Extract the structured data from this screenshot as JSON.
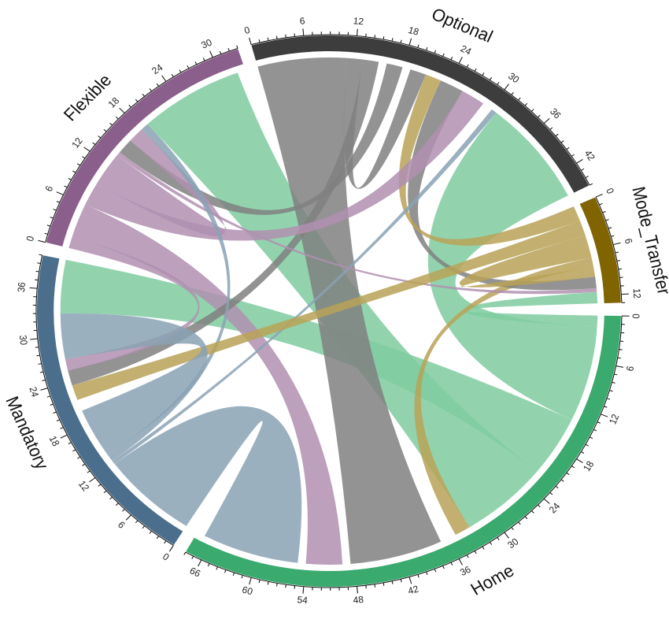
{
  "chart_data": {
    "type": "chord",
    "sectors": [
      {
        "name": "Home",
        "max": 68,
        "color": "#3aaa6e",
        "tick_labels": [
          "0",
          "6",
          "12",
          "18",
          "24",
          "30",
          "36",
          "42",
          "48",
          "54",
          "60",
          "66"
        ]
      },
      {
        "name": "Mandatory",
        "max": 40,
        "color": "#4a6e8c",
        "tick_labels": [
          "0",
          "6",
          "12",
          "18",
          "24",
          "30",
          "36"
        ]
      },
      {
        "name": "Flexible",
        "max": 33,
        "color": "#8b5f8b",
        "tick_labels": [
          "0",
          "6",
          "12",
          "18",
          "24",
          "30"
        ]
      },
      {
        "name": "Optional",
        "max": 45,
        "color": "#3d3d3d",
        "tick_labels": [
          "0",
          "6",
          "12",
          "18",
          "24",
          "30",
          "36",
          "42"
        ]
      },
      {
        "name": "Mode_Transfer",
        "max": 13,
        "color": "#7f6400",
        "tick_labels": [
          "0",
          "6",
          "12"
        ]
      }
    ],
    "link_colors": {
      "Home": "#7fcba0",
      "Mandatory": "#8aa2b4",
      "Flexible": "#b08fb0",
      "Optional": "#808080",
      "Mode_Transfer": "#b8a257"
    },
    "links": [
      {
        "from": "Home",
        "from_range": [
          0,
          1.5
        ],
        "to": "Mode_Transfer",
        "to_range": [
          11.5,
          13
        ]
      },
      {
        "from": "Home",
        "from_range": [
          1.5,
          14
        ],
        "to": "Optional",
        "to_range": [
          31,
          45
        ]
      },
      {
        "from": "Home",
        "from_range": [
          14,
          22
        ],
        "to": "Mandatory",
        "to_range": [
          33,
          40
        ]
      },
      {
        "from": "Home",
        "from_range": [
          22,
          33
        ],
        "to": "Flexible",
        "to_range": [
          19,
          32
        ]
      },
      {
        "from": "Mode_Transfer",
        "from_range": [
          7,
          8.2
        ],
        "to": "Home",
        "to_range": [
          33,
          35
        ]
      },
      {
        "from": "Optional",
        "from_range": [
          0,
          11
        ],
        "to": "Home",
        "to_range": [
          37,
          48.5
        ]
      },
      {
        "from": "Flexible",
        "from_range": [
          1.5,
          6
        ],
        "to": "Home",
        "to_range": [
          49.5,
          54
        ]
      },
      {
        "from": "Mandatory",
        "from_range": [
          0,
          12
        ],
        "to": "Home",
        "to_range": [
          55,
          67
        ]
      },
      {
        "from": "Optional",
        "from_range": [
          11,
          13
        ],
        "to": "Optional",
        "to_range": [
          19,
          21
        ]
      },
      {
        "from": "Optional",
        "from_range": [
          13,
          15
        ],
        "to": "Mandatory",
        "to_range": [
          23.5,
          25.5
        ]
      },
      {
        "from": "Optional",
        "from_range": [
          16,
          18
        ],
        "to": "Flexible",
        "to_range": [
          14,
          16
        ]
      },
      {
        "from": "Optional",
        "from_range": [
          23,
          26
        ],
        "to": "Mode_Transfer",
        "to_range": [
          9.5,
          11
        ]
      },
      {
        "from": "Mode_Transfer",
        "from_range": [
          0,
          2
        ],
        "to": "Optional",
        "to_range": [
          21,
          23
        ]
      },
      {
        "from": "Flexible",
        "from_range": [
          6,
          9
        ],
        "to": "Optional",
        "to_range": [
          26,
          29
        ]
      },
      {
        "from": "Mandatory",
        "from_range": [
          12,
          12.5
        ],
        "to": "Optional",
        "to_range": [
          30.3,
          31
        ]
      },
      {
        "from": "Flexible",
        "from_range": [
          0,
          1.5
        ],
        "to": "Mandatory",
        "to_range": [
          25.5,
          27
        ]
      },
      {
        "from": "Flexible",
        "from_range": [
          9,
          13.5
        ],
        "to": "Flexible",
        "to_range": [
          16,
          18
        ]
      },
      {
        "from": "Flexible",
        "from_range": [
          13.5,
          14
        ],
        "to": "Mode_Transfer",
        "to_range": [
          11,
          11.5
        ]
      },
      {
        "from": "Mandatory",
        "from_range": [
          12.5,
          13.5
        ],
        "to": "Flexible",
        "to_range": [
          18,
          19
        ]
      },
      {
        "from": "Mode_Transfer",
        "from_range": [
          2,
          4
        ],
        "to": "Mandatory",
        "to_range": [
          21.5,
          23.5
        ]
      },
      {
        "from": "Mode_Transfer",
        "from_range": [
          4,
          7
        ],
        "to": "Mode_Transfer",
        "to_range": [
          8.2,
          9.5
        ]
      },
      {
        "from": "Mandatory",
        "from_range": [
          13.5,
          20
        ],
        "to": "Mandatory",
        "to_range": [
          27,
          33
        ]
      }
    ]
  }
}
